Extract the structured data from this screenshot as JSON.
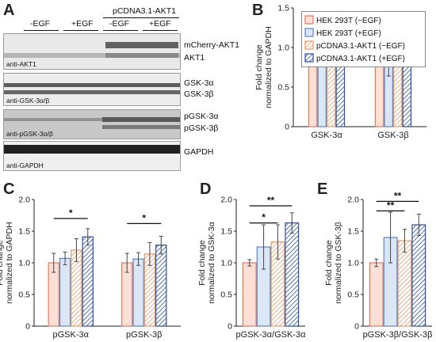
{
  "panel_letters": {
    "a": "A",
    "b": "B",
    "c": "C",
    "d": "D",
    "e": "E"
  },
  "western_blot": {
    "lane_groups": [
      "-EGF",
      "+EGF",
      "-EGF",
      "+EGF"
    ],
    "construct_header": "pCDNA3.1-AKT1",
    "blots": [
      {
        "label": "anti-AKT1",
        "bands": [
          "mCherry-AKT1",
          "AKT1"
        ]
      },
      {
        "label": "anti-GSK-3α/β",
        "bands": [
          "GSK-3α",
          "GSK-3β"
        ]
      },
      {
        "label": "anti-pGSK-3α/β",
        "bands": [
          "pGSK-3α",
          "pGSK-3β"
        ]
      },
      {
        "label": "anti-GAPDH",
        "bands": [
          "GAPDH"
        ]
      }
    ]
  },
  "legend": [
    {
      "label": "HEK 293T (−EGF)",
      "color": "#e07a5f",
      "fill": "#fde0d5",
      "hatch": false
    },
    {
      "label": "HEK 293T (+EGF)",
      "color": "#5b84c4",
      "fill": "#dbe6f6",
      "hatch": false
    },
    {
      "label": "pCDNA3.1-AKT1 (−EGF)",
      "color": "#e59a6a",
      "fill": "#ffffff",
      "hatch": true
    },
    {
      "label": "pCDNA3.1-AKT1 (+EGF)",
      "color": "#2a4f9e",
      "fill": "#ffffff",
      "hatch": true
    }
  ],
  "chart_data": [
    {
      "id": "B",
      "type": "bar",
      "ylabel": "Fold change normalized to GAPDH",
      "ylim": [
        0,
        1.5
      ],
      "yticks": [
        "0",
        "0.5",
        "1.0",
        "1.5"
      ],
      "categories": [
        "GSK-3α",
        "GSK-3β"
      ],
      "series": [
        {
          "name": "HEK 293T (−EGF)",
          "values": [
            1.0,
            1.0
          ],
          "errors": [
            0.12,
            0.16
          ]
        },
        {
          "name": "HEK 293T (+EGF)",
          "values": [
            1.05,
            0.86
          ],
          "errors": [
            0.13,
            0.22
          ]
        },
        {
          "name": "pCDNA3.1-AKT1 (−EGF)",
          "values": [
            1.07,
            1.1
          ],
          "errors": [
            0.07,
            0.08
          ]
        },
        {
          "name": "pCDNA3.1-AKT1 (+EGF)",
          "values": [
            0.98,
            0.95
          ],
          "errors": [
            0.06,
            0.06
          ]
        }
      ],
      "significance": []
    },
    {
      "id": "C",
      "type": "bar",
      "ylabel": "Fold change normalized to GAPDH",
      "ylim": [
        0,
        2.0
      ],
      "yticks": [
        "0",
        "0.5",
        "1.0",
        "1.5",
        "2.0"
      ],
      "categories": [
        "pGSK-3α",
        "pGSK-3β"
      ],
      "series": [
        {
          "name": "HEK 293T (−EGF)",
          "values": [
            1.0,
            1.0
          ],
          "errors": [
            0.15,
            0.15
          ]
        },
        {
          "name": "HEK 293T (+EGF)",
          "values": [
            1.07,
            1.06
          ],
          "errors": [
            0.1,
            0.1
          ]
        },
        {
          "name": "pCDNA3.1-AKT1 (−EGF)",
          "values": [
            1.2,
            1.14
          ],
          "errors": [
            0.18,
            0.18
          ]
        },
        {
          "name": "pCDNA3.1-AKT1 (+EGF)",
          "values": [
            1.41,
            1.28
          ],
          "errors": [
            0.13,
            0.14
          ]
        }
      ],
      "significance": [
        {
          "category": 0,
          "from": 0,
          "to": 3,
          "y": 1.7,
          "label": "*"
        },
        {
          "category": 1,
          "from": 0,
          "to": 3,
          "y": 1.62,
          "label": "*"
        }
      ]
    },
    {
      "id": "D",
      "type": "bar",
      "ylabel": "Fold change normalized to GSK-3α",
      "ylim": [
        0,
        2.0
      ],
      "yticks": [
        "0",
        "0.5",
        "1.0",
        "1.5",
        "2.0"
      ],
      "categories": [
        "pGSK-3α/GSK-3α"
      ],
      "series": [
        {
          "name": "HEK 293T (−EGF)",
          "values": [
            1.0
          ],
          "errors": [
            0.05
          ]
        },
        {
          "name": "HEK 293T (+EGF)",
          "values": [
            1.25
          ],
          "errors": [
            0.35
          ]
        },
        {
          "name": "pCDNA3.1-AKT1 (−EGF)",
          "values": [
            1.33
          ],
          "errors": [
            0.27
          ]
        },
        {
          "name": "pCDNA3.1-AKT1 (+EGF)",
          "values": [
            1.63
          ],
          "errors": [
            0.16
          ]
        }
      ],
      "significance": [
        {
          "category": 0,
          "from": 0,
          "to": 2,
          "y": 1.63,
          "label": "*"
        },
        {
          "category": 0,
          "from": 0,
          "to": 3,
          "y": 1.9,
          "label": "**"
        }
      ]
    },
    {
      "id": "E",
      "type": "bar",
      "ylabel": "Fold change normalized to GSK-3β",
      "ylim": [
        0,
        2.0
      ],
      "yticks": [
        "0",
        "0.5",
        "1.0",
        "1.5",
        "2.0"
      ],
      "categories": [
        "pGSK-3β/GSK-3β"
      ],
      "series": [
        {
          "name": "HEK 293T (−EGF)",
          "values": [
            1.0
          ],
          "errors": [
            0.06
          ]
        },
        {
          "name": "HEK 293T (+EGF)",
          "values": [
            1.4
          ],
          "errors": [
            0.4
          ]
        },
        {
          "name": "pCDNA3.1-AKT1 (−EGF)",
          "values": [
            1.35
          ],
          "errors": [
            0.18
          ]
        },
        {
          "name": "pCDNA3.1-AKT1 (+EGF)",
          "values": [
            1.6
          ],
          "errors": [
            0.17
          ]
        }
      ],
      "significance": [
        {
          "category": 0,
          "from": 0,
          "to": 2,
          "y": 1.82,
          "label": "**"
        },
        {
          "category": 0,
          "from": 0,
          "to": 3,
          "y": 1.97,
          "label": "**"
        }
      ]
    }
  ]
}
